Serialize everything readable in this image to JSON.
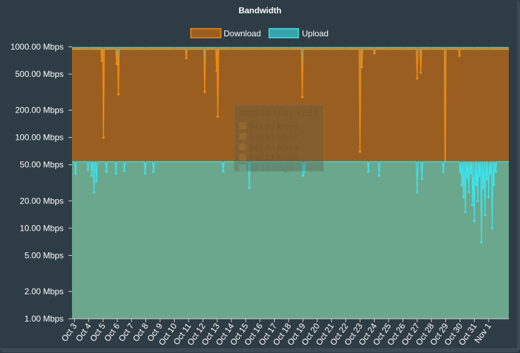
{
  "chart_data": {
    "type": "area",
    "title": "Bandwidth",
    "y_scale": "log",
    "ylim": [
      1,
      1000
    ],
    "y_ticks": [
      {
        "value": 1000,
        "label": "1000.00 Mbps"
      },
      {
        "value": 500,
        "label": "500.00 Mbps"
      },
      {
        "value": 200,
        "label": "200.00 Mbps"
      },
      {
        "value": 100,
        "label": "100.00 Mbps"
      },
      {
        "value": 50,
        "label": "50.00 Mbps"
      },
      {
        "value": 20,
        "label": "20.00 Mbps"
      },
      {
        "value": 10,
        "label": "10.00 Mbps"
      },
      {
        "value": 5,
        "label": "5.00 Mbps"
      },
      {
        "value": 2,
        "label": "2.00 Mbps"
      },
      {
        "value": 1,
        "label": "1.00 Mbps"
      }
    ],
    "xlim": [
      "2023-10-02T20:00",
      "2023-11-02T10:00"
    ],
    "x_ticks": [
      {
        "value": "2023-10-03",
        "label": "Oct 3"
      },
      {
        "value": "2023-10-04",
        "label": "Oct 4"
      },
      {
        "value": "2023-10-05",
        "label": "Oct 5"
      },
      {
        "value": "2023-10-06",
        "label": "Oct 6"
      },
      {
        "value": "2023-10-07",
        "label": "Oct 7"
      },
      {
        "value": "2023-10-08",
        "label": "Oct 8"
      },
      {
        "value": "2023-10-09",
        "label": "Oct 9"
      },
      {
        "value": "2023-10-10",
        "label": "Oct 10"
      },
      {
        "value": "2023-10-11",
        "label": "Oct 11"
      },
      {
        "value": "2023-10-12",
        "label": "Oct 12"
      },
      {
        "value": "2023-10-13",
        "label": "Oct 13"
      },
      {
        "value": "2023-10-14",
        "label": "Oct 14"
      },
      {
        "value": "2023-10-15",
        "label": "Oct 15"
      },
      {
        "value": "2023-10-16",
        "label": "Oct 16"
      },
      {
        "value": "2023-10-17",
        "label": "Oct 17"
      },
      {
        "value": "2023-10-18",
        "label": "Oct 18"
      },
      {
        "value": "2023-10-19",
        "label": "Oct 19"
      },
      {
        "value": "2023-10-20",
        "label": "Oct 20"
      },
      {
        "value": "2023-10-21",
        "label": "Oct 21"
      },
      {
        "value": "2023-10-22",
        "label": "Oct 22"
      },
      {
        "value": "2023-10-23",
        "label": "Oct 23"
      },
      {
        "value": "2023-10-24",
        "label": "Oct 24"
      },
      {
        "value": "2023-10-25",
        "label": "Oct 25"
      },
      {
        "value": "2023-10-26",
        "label": "Oct 26"
      },
      {
        "value": "2023-10-27",
        "label": "Oct 27"
      },
      {
        "value": "2023-10-28",
        "label": "Oct 28"
      },
      {
        "value": "2023-10-29",
        "label": "Oct 29"
      },
      {
        "value": "2023-10-30",
        "label": "Oct 30"
      },
      {
        "value": "2023-10-31",
        "label": "Oct 31"
      },
      {
        "value": "2023-11-01",
        "label": "Nov 1"
      }
    ],
    "grid": true,
    "legend_position": "top",
    "series": [
      {
        "name": "Download",
        "color": "#f08a10",
        "fill": "#9a5f20",
        "baseline": 940,
        "dips": [
          {
            "t": "2023-10-04T22:00",
            "v": 700
          },
          {
            "t": "2023-10-05T01:00",
            "v": 100
          },
          {
            "t": "2023-10-05T23:00",
            "v": 650
          },
          {
            "t": "2023-10-06T02:00",
            "v": 300
          },
          {
            "t": "2023-10-10T20:00",
            "v": 750
          },
          {
            "t": "2023-10-12T03:00",
            "v": 320
          },
          {
            "t": "2023-10-12T23:00",
            "v": 550
          },
          {
            "t": "2023-10-13T01:00",
            "v": 170
          },
          {
            "t": "2023-10-18T23:00",
            "v": 280
          },
          {
            "t": "2023-10-23T00:00",
            "v": 70
          },
          {
            "t": "2023-10-23T03:00",
            "v": 600
          },
          {
            "t": "2023-10-24T00:00",
            "v": 850
          },
          {
            "t": "2023-10-27T00:00",
            "v": 450
          },
          {
            "t": "2023-10-27T06:00",
            "v": 520
          },
          {
            "t": "2023-10-28T23:00",
            "v": 20
          },
          {
            "t": "2023-10-29T23:00",
            "v": 800
          }
        ]
      },
      {
        "name": "Upload",
        "color": "#40e0e8",
        "fill": "#6aa78d",
        "baseline": 54,
        "dips": [
          {
            "t": "2023-10-03T02:00",
            "v": 40
          },
          {
            "t": "2023-10-03T23:00",
            "v": 44
          },
          {
            "t": "2023-10-04T05:00",
            "v": 38
          },
          {
            "t": "2023-10-04T09:00",
            "v": 25
          },
          {
            "t": "2023-10-04T13:00",
            "v": 33
          },
          {
            "t": "2023-10-05T06:00",
            "v": 42
          },
          {
            "t": "2023-10-05T22:00",
            "v": 40
          },
          {
            "t": "2023-10-06T12:00",
            "v": 43
          },
          {
            "t": "2023-10-07T23:00",
            "v": 40
          },
          {
            "t": "2023-10-08T13:00",
            "v": 42
          },
          {
            "t": "2023-10-13T10:00",
            "v": 42
          },
          {
            "t": "2023-10-15T06:00",
            "v": 28
          },
          {
            "t": "2023-10-19T00:00",
            "v": 38
          },
          {
            "t": "2023-10-19T03:00",
            "v": 42
          },
          {
            "t": "2023-10-23T14:00",
            "v": 42
          },
          {
            "t": "2023-10-24T08:00",
            "v": 38
          },
          {
            "t": "2023-10-27T00:00",
            "v": 25
          },
          {
            "t": "2023-10-27T08:00",
            "v": 35
          },
          {
            "t": "2023-10-28T20:00",
            "v": 42
          },
          {
            "t": "2023-10-30T00:00",
            "v": 42
          },
          {
            "t": "2023-10-30T03:00",
            "v": 30
          },
          {
            "t": "2023-10-30T06:00",
            "v": 22
          },
          {
            "t": "2023-10-30T09:00",
            "v": 15
          },
          {
            "t": "2023-10-30T12:00",
            "v": 36
          },
          {
            "t": "2023-10-30T15:00",
            "v": 25
          },
          {
            "t": "2023-10-30T18:00",
            "v": 40
          },
          {
            "t": "2023-10-30T21:00",
            "v": 18
          },
          {
            "t": "2023-10-31T00:00",
            "v": 12
          },
          {
            "t": "2023-10-31T03:00",
            "v": 30
          },
          {
            "t": "2023-10-31T06:00",
            "v": 20
          },
          {
            "t": "2023-10-31T09:00",
            "v": 38
          },
          {
            "t": "2023-10-31T12:00",
            "v": 7
          },
          {
            "t": "2023-10-31T15:00",
            "v": 28
          },
          {
            "t": "2023-10-31T18:00",
            "v": 14
          },
          {
            "t": "2023-10-31T21:00",
            "v": 35
          },
          {
            "t": "2023-11-01T00:00",
            "v": 22
          },
          {
            "t": "2023-11-01T03:00",
            "v": 40
          },
          {
            "t": "2023-11-01T06:00",
            "v": 10
          },
          {
            "t": "2023-11-01T09:00",
            "v": 30
          },
          {
            "t": "2023-11-01T12:00",
            "v": 42
          }
        ]
      }
    ],
    "tooltip": {
      "timestamp": "2023-10-11 01:42:27",
      "rows": [
        "941.00 Mbps",
        "940.95 Mbps",
        "945.40 Mbps",
        "942.22 Mbps",
        "49.24 Mbps"
      ]
    }
  }
}
